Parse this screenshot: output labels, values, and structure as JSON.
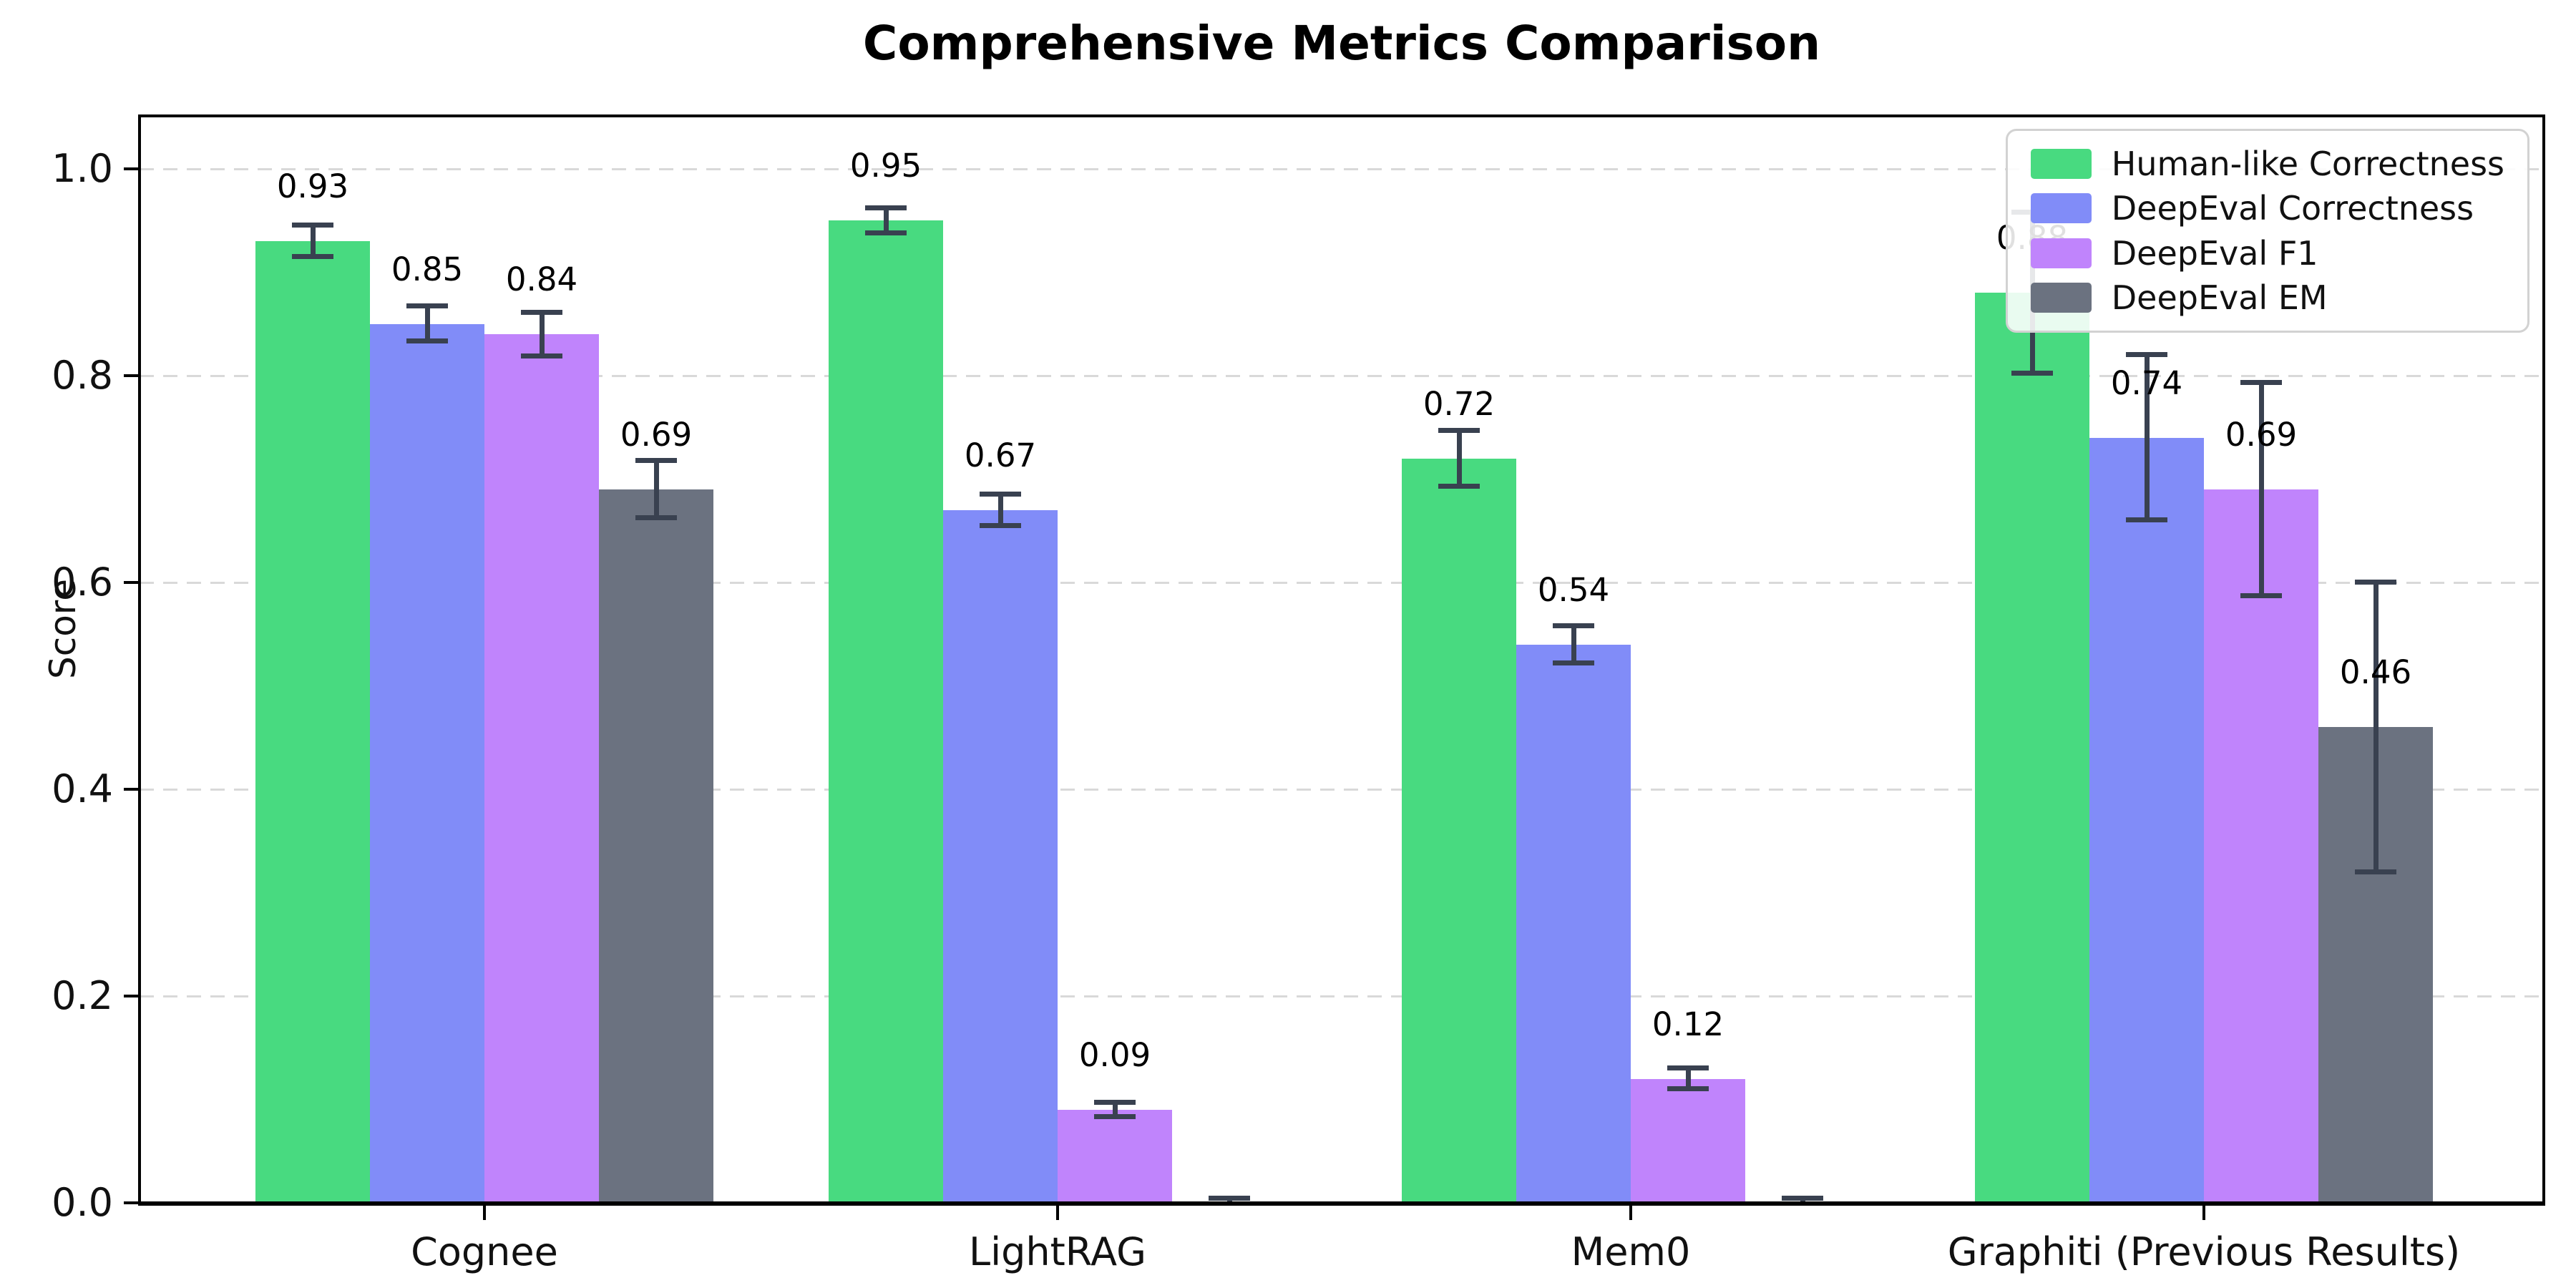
{
  "chart_data": {
    "type": "bar",
    "title": "Comprehensive Metrics Comparison",
    "ylabel": "Score",
    "categories": [
      "Cognee",
      "LightRAG",
      "Mem0",
      "Graphiti (Previous Results)"
    ],
    "series": [
      {
        "name": "Human-like Correctness",
        "color": "#48da80",
        "values": [
          0.93,
          0.95,
          0.72,
          0.88
        ],
        "errors": [
          0.015,
          0.012,
          0.027,
          0.078
        ],
        "labels": [
          "0.93",
          "0.95",
          "0.72",
          "0.88"
        ]
      },
      {
        "name": "DeepEval Correctness",
        "color": "#818cf8",
        "values": [
          0.85,
          0.67,
          0.54,
          0.74
        ],
        "errors": [
          0.017,
          0.015,
          0.018,
          0.08
        ],
        "labels": [
          "0.85",
          "0.67",
          "0.54",
          "0.74"
        ]
      },
      {
        "name": "DeepEval F1",
        "color": "#c084fc",
        "values": [
          0.84,
          0.09,
          0.12,
          0.69
        ],
        "errors": [
          0.021,
          0.007,
          0.01,
          0.103
        ],
        "labels": [
          "0.84",
          "0.09",
          "0.12",
          "0.69"
        ]
      },
      {
        "name": "DeepEval EM",
        "color": "#6b7280",
        "values": [
          0.69,
          0.0,
          0.0,
          0.46
        ],
        "errors": [
          0.028,
          0.004,
          0.004,
          0.14
        ],
        "labels": [
          "0.69",
          "",
          "",
          "0.46"
        ]
      }
    ],
    "y_ticks": [
      0.0,
      0.2,
      0.4,
      0.6,
      0.8,
      1.0
    ],
    "y_tick_labels": [
      "0.0",
      "0.2",
      "0.4",
      "0.6",
      "0.8",
      "1.0"
    ],
    "ylim": [
      0,
      1.051
    ],
    "grid": "horizontal-dashed",
    "legend_position": "upper-right",
    "error_bar_color": "#394150",
    "background": "#ffffff"
  }
}
